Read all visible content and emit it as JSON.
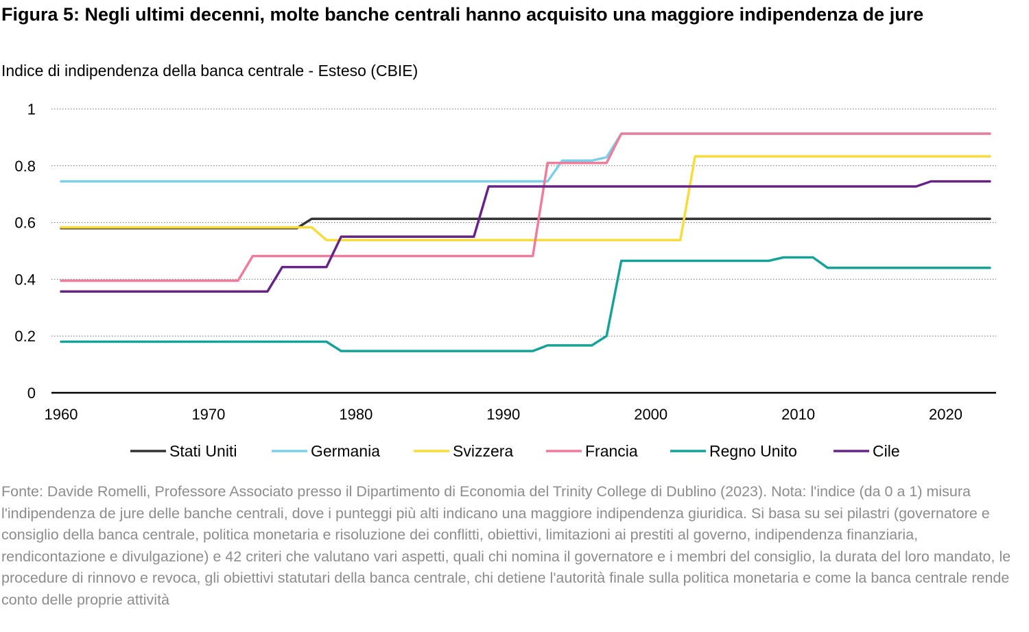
{
  "title": "Figura 5: Negli ultimi decenni, molte banche centrali hanno acquisito una maggiore indipendenza de jure",
  "subtitle": "Indice di indipendenza della banca centrale - Esteso (CBIE)",
  "source": "Fonte: Davide Romelli, Professore Associato presso il Dipartimento di Economia del Trinity College di Dublino (2023). Nota: l'indice (da 0 a 1) misura l'indipendenza de jure delle banche centrali, dove i punteggi più alti indicano una maggiore indipendenza giuridica. Si basa su sei pilastri (governatore e consiglio della banca centrale, politica monetaria e risoluzione dei conflitti, obiettivi, limitazioni ai prestiti al governo, indipendenza finanziaria, rendicontazione e divulgazione) e 42 criteri che valutano vari aspetti, quali chi nomina il governatore e i membri del consiglio, la durata del loro mandato, le procedure di rinnovo e revoca, gli obiettivi statutari della banca centrale, chi detiene l'autorità finale sulla politica monetaria e come la banca centrale rende conto delle proprie attività",
  "chart_data": {
    "type": "line",
    "xlabel": "",
    "ylabel": "",
    "xlim": [
      1960,
      2023
    ],
    "ylim": [
      0,
      1
    ],
    "x_ticks": [
      1960,
      1970,
      1980,
      1990,
      2000,
      2010,
      2020
    ],
    "y_ticks": [
      0,
      0.2,
      0.4,
      0.6,
      0.8,
      1
    ],
    "y_tick_labels": [
      "0",
      "0.2",
      "0.4",
      "0.6",
      "0.8",
      "1"
    ],
    "grid": "horizontal dotted",
    "legend_position": "bottom",
    "series": [
      {
        "name": "Stati Uniti",
        "color": "#333333",
        "points": [
          [
            1960,
            0.58
          ],
          [
            1976,
            0.58
          ],
          [
            1977,
            0.613
          ],
          [
            2023,
            0.613
          ]
        ]
      },
      {
        "name": "Germania",
        "color": "#7dcfe8",
        "points": [
          [
            1960,
            0.745
          ],
          [
            1993,
            0.745
          ],
          [
            1994,
            0.818
          ],
          [
            1996,
            0.818
          ],
          [
            1997,
            0.83
          ],
          [
            1998,
            0.913
          ],
          [
            2023,
            0.913
          ]
        ]
      },
      {
        "name": "Svizzera",
        "color": "#f7dc3c",
        "points": [
          [
            1960,
            0.583
          ],
          [
            1977,
            0.583
          ],
          [
            1978,
            0.538
          ],
          [
            2002,
            0.538
          ],
          [
            2003,
            0.833
          ],
          [
            2023,
            0.833
          ]
        ]
      },
      {
        "name": "Francia",
        "color": "#ef7c9a",
        "points": [
          [
            1960,
            0.395
          ],
          [
            1972,
            0.395
          ],
          [
            1973,
            0.482
          ],
          [
            1992,
            0.482
          ],
          [
            1993,
            0.81
          ],
          [
            1997,
            0.81
          ],
          [
            1998,
            0.913
          ],
          [
            2023,
            0.913
          ]
        ]
      },
      {
        "name": "Regno Unito",
        "color": "#17a297",
        "points": [
          [
            1960,
            0.18
          ],
          [
            1978,
            0.18
          ],
          [
            1979,
            0.147
          ],
          [
            1992,
            0.147
          ],
          [
            1993,
            0.167
          ],
          [
            1996,
            0.167
          ],
          [
            1997,
            0.2
          ],
          [
            1998,
            0.465
          ],
          [
            2008,
            0.465
          ],
          [
            2009,
            0.477
          ],
          [
            2011,
            0.477
          ],
          [
            2012,
            0.44
          ],
          [
            2023,
            0.44
          ]
        ]
      },
      {
        "name": "Cile",
        "color": "#652486",
        "points": [
          [
            1960,
            0.357
          ],
          [
            1974,
            0.357
          ],
          [
            1975,
            0.443
          ],
          [
            1978,
            0.443
          ],
          [
            1979,
            0.55
          ],
          [
            1988,
            0.55
          ],
          [
            1989,
            0.727
          ],
          [
            2018,
            0.727
          ],
          [
            2019,
            0.745
          ],
          [
            2023,
            0.745
          ]
        ]
      }
    ]
  }
}
